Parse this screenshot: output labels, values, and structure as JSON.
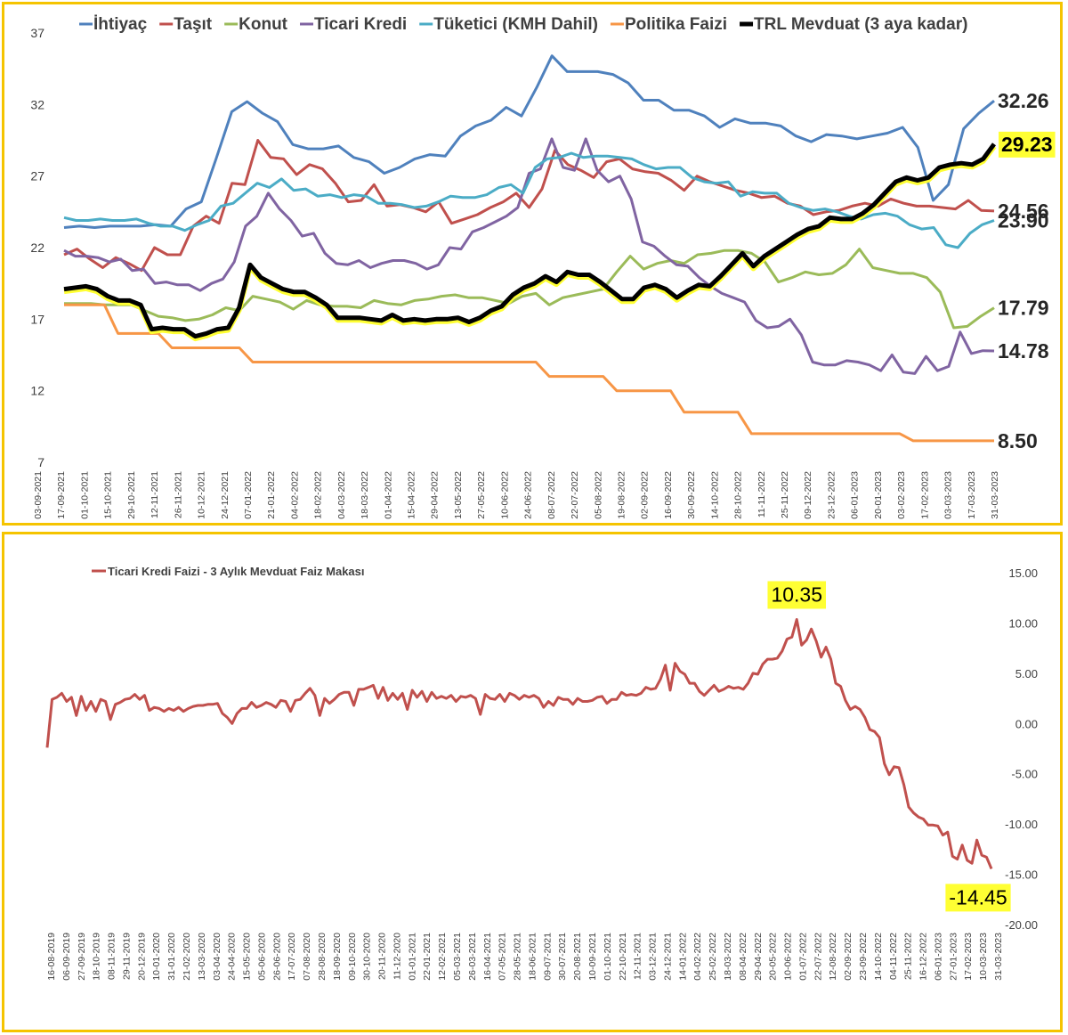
{
  "chart_data": [
    {
      "type": "line",
      "title": "",
      "xlabel": "",
      "ylabel": "",
      "ylim": [
        7,
        37
      ],
      "yticks": [
        7,
        12,
        17,
        22,
        27,
        32,
        37
      ],
      "legend_position": "top",
      "x_tick_labels": [
        "03-09-2021",
        "17-09-2021",
        "01-10-2021",
        "15-10-2021",
        "29-10-2021",
        "12-11-2021",
        "26-11-2021",
        "10-12-2021",
        "24-12-2021",
        "07-01-2022",
        "21-01-2022",
        "04-02-2022",
        "18-02-2022",
        "04-03-2022",
        "18-03-2022",
        "01-04-2022",
        "15-04-2022",
        "29-04-2022",
        "13-05-2022",
        "27-05-2022",
        "10-06-2022",
        "24-06-2022",
        "08-07-2022",
        "22-07-2022",
        "05-08-2022",
        "19-08-2022",
        "02-09-2022",
        "16-09-2022",
        "30-09-2022",
        "14-10-2022",
        "28-10-2022",
        "11-11-2022",
        "25-11-2022",
        "09-12-2022",
        "23-12-2022",
        "06-01-2023",
        "20-01-2023",
        "03-02-2023",
        "17-02-2023",
        "03-03-2023",
        "17-03-2023",
        "31-03-2023"
      ],
      "series": [
        {
          "name": "İhtiyaç",
          "color": "#4f81bd",
          "end_label": "32.26",
          "highlight": false,
          "values": [
            23.4,
            23.5,
            23.4,
            23.5,
            23.5,
            23.5,
            23.6,
            23.5,
            24.7,
            25.2,
            28.3,
            31.5,
            32.2,
            31.4,
            30.8,
            29.2,
            28.9,
            28.9,
            29.1,
            28.3,
            28.0,
            27.2,
            27.6,
            28.2,
            28.5,
            28.4,
            29.8,
            30.5,
            30.9,
            31.8,
            31.2,
            33.2,
            35.4,
            34.3,
            34.3,
            34.3,
            34.1,
            33.5,
            32.3,
            32.3,
            31.6,
            31.6,
            31.2,
            30.4,
            31.0,
            30.7,
            30.7,
            30.5,
            29.8,
            29.4,
            29.9,
            29.8,
            29.6,
            29.8,
            30.0,
            30.4,
            29.0,
            25.3,
            26.4,
            30.3,
            31.4,
            32.26
          ]
        },
        {
          "name": "Taşıt",
          "color": "#c0504d",
          "end_label": "24.56",
          "highlight": false,
          "values": [
            21.5,
            21.9,
            21.2,
            20.6,
            21.3,
            20.9,
            20.4,
            22.0,
            21.5,
            21.5,
            23.5,
            24.2,
            23.7,
            26.5,
            26.4,
            29.5,
            28.3,
            28.2,
            27.1,
            27.8,
            27.5,
            26.5,
            25.2,
            25.3,
            26.4,
            24.9,
            25.0,
            24.8,
            24.5,
            25.2,
            23.7,
            24.0,
            24.3,
            24.8,
            25.2,
            25.8,
            24.8,
            26.1,
            28.8,
            27.8,
            27.4,
            26.9,
            28.0,
            28.2,
            27.5,
            27.3,
            27.2,
            26.7,
            26.0,
            27.0,
            26.6,
            26.3,
            26.0,
            25.8,
            25.5,
            25.6,
            25.1,
            24.9,
            24.3,
            24.5,
            24.6,
            24.9,
            25.1,
            24.9,
            25.4,
            25.1,
            24.9,
            24.9,
            24.8,
            24.7,
            25.3,
            24.6,
            24.56
          ]
        },
        {
          "name": "Konut",
          "color": "#9bbb59",
          "end_label": "17.79",
          "highlight": false,
          "values": [
            18.1,
            18.1,
            18.1,
            18.0,
            18.0,
            18.0,
            17.6,
            17.2,
            17.1,
            16.9,
            17.0,
            17.3,
            17.8,
            17.6,
            18.6,
            18.4,
            18.2,
            17.7,
            18.3,
            18.0,
            17.9,
            17.9,
            17.8,
            18.3,
            18.1,
            18.0,
            18.3,
            18.4,
            18.6,
            18.7,
            18.5,
            18.5,
            18.3,
            18.1,
            18.6,
            18.8,
            18.0,
            18.5,
            18.7,
            18.9,
            19.1,
            20.3,
            21.4,
            20.5,
            20.9,
            21.1,
            20.9,
            21.5,
            21.6,
            21.8,
            21.8,
            21.6,
            21.0,
            19.6,
            19.9,
            20.3,
            20.1,
            20.2,
            20.8,
            21.9,
            20.6,
            20.4,
            20.2,
            20.2,
            19.9,
            18.9,
            16.4,
            16.5,
            17.2,
            17.79
          ]
        },
        {
          "name": "Ticari Kredi",
          "color": "#8064a2",
          "end_label": "14.78",
          "highlight": false,
          "values": [
            21.8,
            21.4,
            21.4,
            21.3,
            21.0,
            21.2,
            20.4,
            20.5,
            19.5,
            19.6,
            19.4,
            19.4,
            19.0,
            19.5,
            19.8,
            21.0,
            23.5,
            24.2,
            25.8,
            24.7,
            23.9,
            22.8,
            23.0,
            21.6,
            20.9,
            20.8,
            21.1,
            20.6,
            20.9,
            21.1,
            21.1,
            20.9,
            20.5,
            20.8,
            22.0,
            21.9,
            23.1,
            23.4,
            23.8,
            24.2,
            24.8,
            27.2,
            27.5,
            29.6,
            27.6,
            27.4,
            29.6,
            27.4,
            26.6,
            27.0,
            25.4,
            22.4,
            22.1,
            21.4,
            20.8,
            20.7,
            19.9,
            19.3,
            18.8,
            18.5,
            18.2,
            16.9,
            16.4,
            16.5,
            17.0,
            15.9,
            14.0,
            13.8,
            13.8,
            14.1,
            14.0,
            13.8,
            13.4,
            14.5,
            13.3,
            13.2,
            14.4,
            13.4,
            13.7,
            16.1,
            14.6,
            14.8,
            14.78
          ]
        },
        {
          "name": "Tüketici (KMH Dahil)",
          "color": "#4bacc6",
          "end_label": "23.90",
          "highlight": false,
          "values": [
            24.1,
            23.9,
            23.9,
            24.0,
            23.9,
            23.9,
            24.0,
            23.7,
            23.5,
            23.5,
            23.2,
            23.6,
            23.9,
            24.9,
            25.1,
            25.8,
            26.5,
            26.2,
            26.8,
            26.0,
            26.1,
            25.6,
            25.7,
            25.5,
            25.7,
            25.6,
            25.1,
            25.1,
            25.0,
            24.8,
            24.9,
            25.2,
            25.6,
            25.5,
            25.5,
            25.7,
            26.2,
            26.4,
            25.8,
            27.6,
            28.2,
            28.3,
            28.6,
            28.3,
            28.4,
            28.4,
            28.3,
            28.2,
            27.8,
            27.5,
            27.6,
            27.6,
            26.9,
            26.6,
            26.5,
            26.6,
            25.6,
            25.9,
            25.8,
            25.8,
            25.1,
            24.8,
            24.6,
            24.7,
            24.5,
            24.2,
            24.0,
            24.3,
            24.4,
            24.2,
            23.6,
            23.3,
            23.4,
            22.2,
            22.0,
            23.0,
            23.6,
            23.9
          ]
        },
        {
          "name": "Politika Faizi",
          "color": "#f79646",
          "end_label": "8.50",
          "highlight": false,
          "values": [
            18.0,
            18.0,
            18.0,
            18.0,
            16.0,
            16.0,
            16.0,
            16.0,
            15.0,
            15.0,
            15.0,
            15.0,
            15.0,
            15.0,
            14.0,
            14.0,
            14.0,
            14.0,
            14.0,
            14.0,
            14.0,
            14.0,
            14.0,
            14.0,
            14.0,
            14.0,
            14.0,
            14.0,
            14.0,
            14.0,
            14.0,
            14.0,
            14.0,
            14.0,
            14.0,
            14.0,
            13.0,
            13.0,
            13.0,
            13.0,
            13.0,
            12.0,
            12.0,
            12.0,
            12.0,
            12.0,
            10.5,
            10.5,
            10.5,
            10.5,
            10.5,
            9.0,
            9.0,
            9.0,
            9.0,
            9.0,
            9.0,
            9.0,
            9.0,
            9.0,
            9.0,
            9.0,
            9.0,
            8.5,
            8.5,
            8.5,
            8.5,
            8.5,
            8.5,
            8.5
          ]
        },
        {
          "name": "TRL Mevduat (3 aya kadar)",
          "color": "#000000",
          "end_label": "29.23",
          "highlight": true,
          "values": [
            19.1,
            19.2,
            19.3,
            19.1,
            18.6,
            18.3,
            18.3,
            18.0,
            16.3,
            16.4,
            16.3,
            16.3,
            15.8,
            16.0,
            16.3,
            16.4,
            17.8,
            20.8,
            19.9,
            19.5,
            19.1,
            18.9,
            18.9,
            18.5,
            18.0,
            17.1,
            17.1,
            17.1,
            17.0,
            16.9,
            17.3,
            16.9,
            17.0,
            16.9,
            17.0,
            17.0,
            17.1,
            16.8,
            17.1,
            17.6,
            17.9,
            18.7,
            19.2,
            19.5,
            20.0,
            19.6,
            20.3,
            20.1,
            20.1,
            19.6,
            19.0,
            18.4,
            18.4,
            19.2,
            19.4,
            19.1,
            18.5,
            19.0,
            19.4,
            19.3,
            20.0,
            20.8,
            21.6,
            20.7,
            21.4,
            21.9,
            22.4,
            22.9,
            23.3,
            23.5,
            24.1,
            24.0,
            24.0,
            24.4,
            25.0,
            25.8,
            26.6,
            26.9,
            26.7,
            26.9,
            27.6,
            27.8,
            27.9,
            27.8,
            28.2,
            29.23
          ]
        }
      ]
    },
    {
      "type": "line",
      "title": "",
      "xlabel": "",
      "ylabel": "",
      "ylim": [
        -20,
        15
      ],
      "y_axis_position": "right",
      "yticks": [
        "15.00",
        "10.00",
        "5.00",
        "0.00",
        "-5.00",
        "-10.00",
        "-15.00",
        "-20.00"
      ],
      "legend_position": "top-left",
      "x_tick_labels": [
        "16-08-2019",
        "06-09-2019",
        "27-09-2019",
        "18-10-2019",
        "08-11-2019",
        "29-11-2019",
        "20-12-2019",
        "10-01-2020",
        "31-01-2020",
        "21-02-2020",
        "13-03-2020",
        "03-04-2020",
        "24-04-2020",
        "15-05-2020",
        "05-06-2020",
        "26-06-2020",
        "17-07-2020",
        "07-08-2020",
        "28-08-2020",
        "18-09-2020",
        "09-10-2020",
        "30-10-2020",
        "20-11-2020",
        "11-12-2020",
        "01-01-2021",
        "22-01-2021",
        "12-02-2021",
        "05-03-2021",
        "26-03-2021",
        "16-04-2021",
        "07-05-2021",
        "28-05-2021",
        "18-06-2021",
        "09-07-2021",
        "30-07-2021",
        "20-08-2021",
        "10-09-2021",
        "01-10-2021",
        "22-10-2021",
        "12-11-2021",
        "03-12-2021",
        "24-12-2021",
        "14-01-2022",
        "04-02-2022",
        "25-02-2022",
        "18-03-2022",
        "08-04-2022",
        "29-04-2022",
        "20-05-2022",
        "10-06-2022",
        "01-07-2022",
        "22-07-2022",
        "12-08-2022",
        "02-09-2022",
        "23-09-2022",
        "14-10-2022",
        "04-11-2022",
        "25-11-2022",
        "16-12-2022",
        "06-01-2023",
        "27-01-2023",
        "17-02-2023",
        "10-03-2023",
        "31-03-2023"
      ],
      "annotations": [
        {
          "text": "10.35",
          "value": 10.35
        },
        {
          "text": "-14.45",
          "value": -14.45
        }
      ],
      "series": [
        {
          "name": "Ticari Kredi Faizi - 3 Aylık Mevduat Faiz Makası",
          "color": "#c0504d",
          "values": [
            -2.4,
            2.4,
            2.6,
            3.0,
            2.2,
            2.6,
            0.8,
            2.7,
            1.3,
            2.2,
            1.2,
            2.4,
            2.2,
            0.4,
            1.9,
            2.1,
            2.4,
            2.5,
            2.9,
            2.4,
            2.8,
            1.3,
            1.6,
            1.5,
            1.2,
            1.5,
            1.3,
            1.6,
            1.2,
            1.5,
            1.7,
            1.8,
            1.8,
            1.9,
            1.9,
            2.0,
            1.0,
            0.6,
            0.0,
            1.0,
            1.5,
            1.5,
            2.1,
            1.6,
            1.8,
            2.1,
            1.9,
            1.6,
            2.3,
            2.2,
            1.2,
            2.3,
            2.4,
            3.0,
            3.5,
            2.8,
            0.8,
            2.5,
            2.0,
            2.4,
            2.9,
            3.1,
            3.1,
            1.8,
            3.4,
            3.4,
            3.6,
            3.8,
            2.5,
            3.6,
            2.3,
            3.0,
            2.4,
            3.0,
            1.4,
            3.3,
            2.6,
            3.2,
            2.2,
            3.1,
            2.5,
            2.7,
            2.5,
            2.8,
            2.2,
            2.7,
            2.6,
            2.8,
            2.5,
            0.9,
            2.9,
            2.5,
            2.4,
            2.9,
            2.2,
            3.0,
            2.8,
            2.4,
            2.8,
            2.6,
            2.8,
            2.5,
            1.6,
            2.2,
            1.8,
            2.6,
            2.4,
            2.4,
            1.9,
            2.5,
            2.2,
            2.2,
            2.3,
            2.6,
            2.7,
            2.0,
            2.4,
            2.4,
            3.1,
            2.8,
            2.9,
            2.8,
            3.0,
            3.6,
            3.4,
            3.5,
            4.4,
            5.8,
            3.3,
            6.0,
            5.2,
            4.9,
            4.0,
            4.0,
            3.2,
            2.8,
            3.3,
            3.8,
            3.2,
            3.4,
            3.7,
            3.5,
            3.6,
            3.4,
            4.0,
            5.0,
            4.9,
            5.9,
            6.4,
            6.4,
            6.5,
            7.2,
            8.4,
            8.6,
            10.35,
            7.8,
            8.3,
            9.4,
            8.2,
            6.6,
            7.6,
            6.4,
            4.0,
            3.7,
            2.3,
            1.4,
            1.7,
            1.4,
            0.6,
            -0.6,
            -0.8,
            -1.4,
            -4.0,
            -5.1,
            -4.3,
            -4.4,
            -6.1,
            -8.3,
            -8.9,
            -9.3,
            -9.5,
            -10.1,
            -10.1,
            -10.2,
            -11.1,
            -10.8,
            -13.2,
            -13.5,
            -12.1,
            -13.6,
            -13.9,
            -11.6,
            -13.1,
            -13.3,
            -14.45
          ]
        }
      ]
    }
  ]
}
